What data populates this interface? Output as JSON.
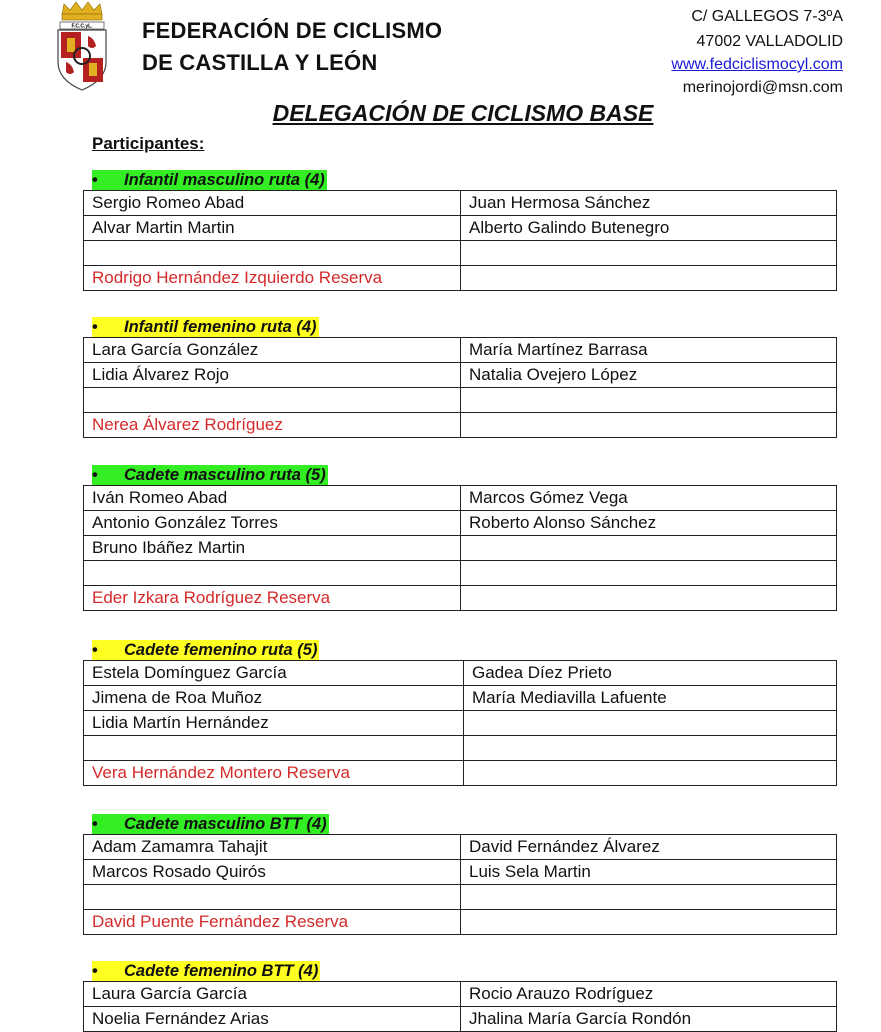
{
  "header": {
    "org_line1": "FEDERACIÓN DE CICLISMO",
    "org_line2": "DE CASTILLA Y LEÓN",
    "logo_text": "F.C.C.yL.",
    "address_line1": "C/ GALLEGOS 7-3ºA",
    "address_line2": "47002 VALLADOLID",
    "website": "www.fedciclismocyl.com",
    "email": "merinojordi@msn.com"
  },
  "document": {
    "title": "DELEGACIÓN DE CICLISMO BASE",
    "participants_label": "Participantes:"
  },
  "colors": {
    "green_highlight": "#33ee22",
    "yellow_highlight": "#ffff22",
    "reserve_text": "#d42a2a"
  },
  "sections": [
    {
      "title": "Infantil masculino ruta (4)",
      "highlight": "#33ee22",
      "rows": [
        [
          "Sergio Romeo Abad",
          "Juan Hermosa Sánchez"
        ],
        [
          "Alvar Martin Martin",
          "Alberto Galindo Butenegro"
        ],
        [
          "",
          ""
        ]
      ],
      "reserve": "Rodrigo Hernández Izquierdo Reserva"
    },
    {
      "title": "Infantil femenino ruta (4)",
      "highlight": "#ffff22",
      "rows": [
        [
          "Lara García González",
          "María Martínez Barrasa"
        ],
        [
          "Lidia Álvarez Rojo",
          "Natalia Ovejero López"
        ],
        [
          "",
          ""
        ]
      ],
      "reserve": "Nerea Álvarez Rodríguez"
    },
    {
      "title": "Cadete masculino ruta (5)",
      "highlight": "#33ee22",
      "rows": [
        [
          "Iván Romeo Abad",
          "Marcos Gómez Vega"
        ],
        [
          "Antonio González Torres",
          "Roberto Alonso Sánchez"
        ],
        [
          "Bruno Ibáñez Martin",
          ""
        ],
        [
          "",
          ""
        ]
      ],
      "reserve": "Eder Izkara Rodríguez Reserva"
    },
    {
      "title": "Cadete femenino ruta (5)",
      "highlight": "#ffff22",
      "rows": [
        [
          "Estela Domínguez García",
          "Gadea Díez Prieto"
        ],
        [
          "Jimena de Roa Muñoz",
          "María Mediavilla Lafuente"
        ],
        [
          "Lidia Martín Hernández",
          ""
        ],
        [
          "",
          ""
        ]
      ],
      "reserve": "Vera Hernández Montero Reserva"
    },
    {
      "title": "Cadete masculino BTT (4)",
      "highlight": "#33ee22",
      "rows": [
        [
          "Adam Zamamra Tahajit",
          "David Fernández Álvarez"
        ],
        [
          "Marcos Rosado Quirós",
          "Luis Sela Martin"
        ],
        [
          "",
          ""
        ]
      ],
      "reserve": "David Puente Fernández Reserva"
    },
    {
      "title": "Cadete femenino BTT (4)",
      "highlight": "#ffff22",
      "rows": [
        [
          "Laura García García",
          "Rocio Arauzo Rodríguez"
        ],
        [
          "Noelia Fernández Arias",
          "Jhalina María García Rondón"
        ]
      ],
      "reserve": null
    }
  ]
}
